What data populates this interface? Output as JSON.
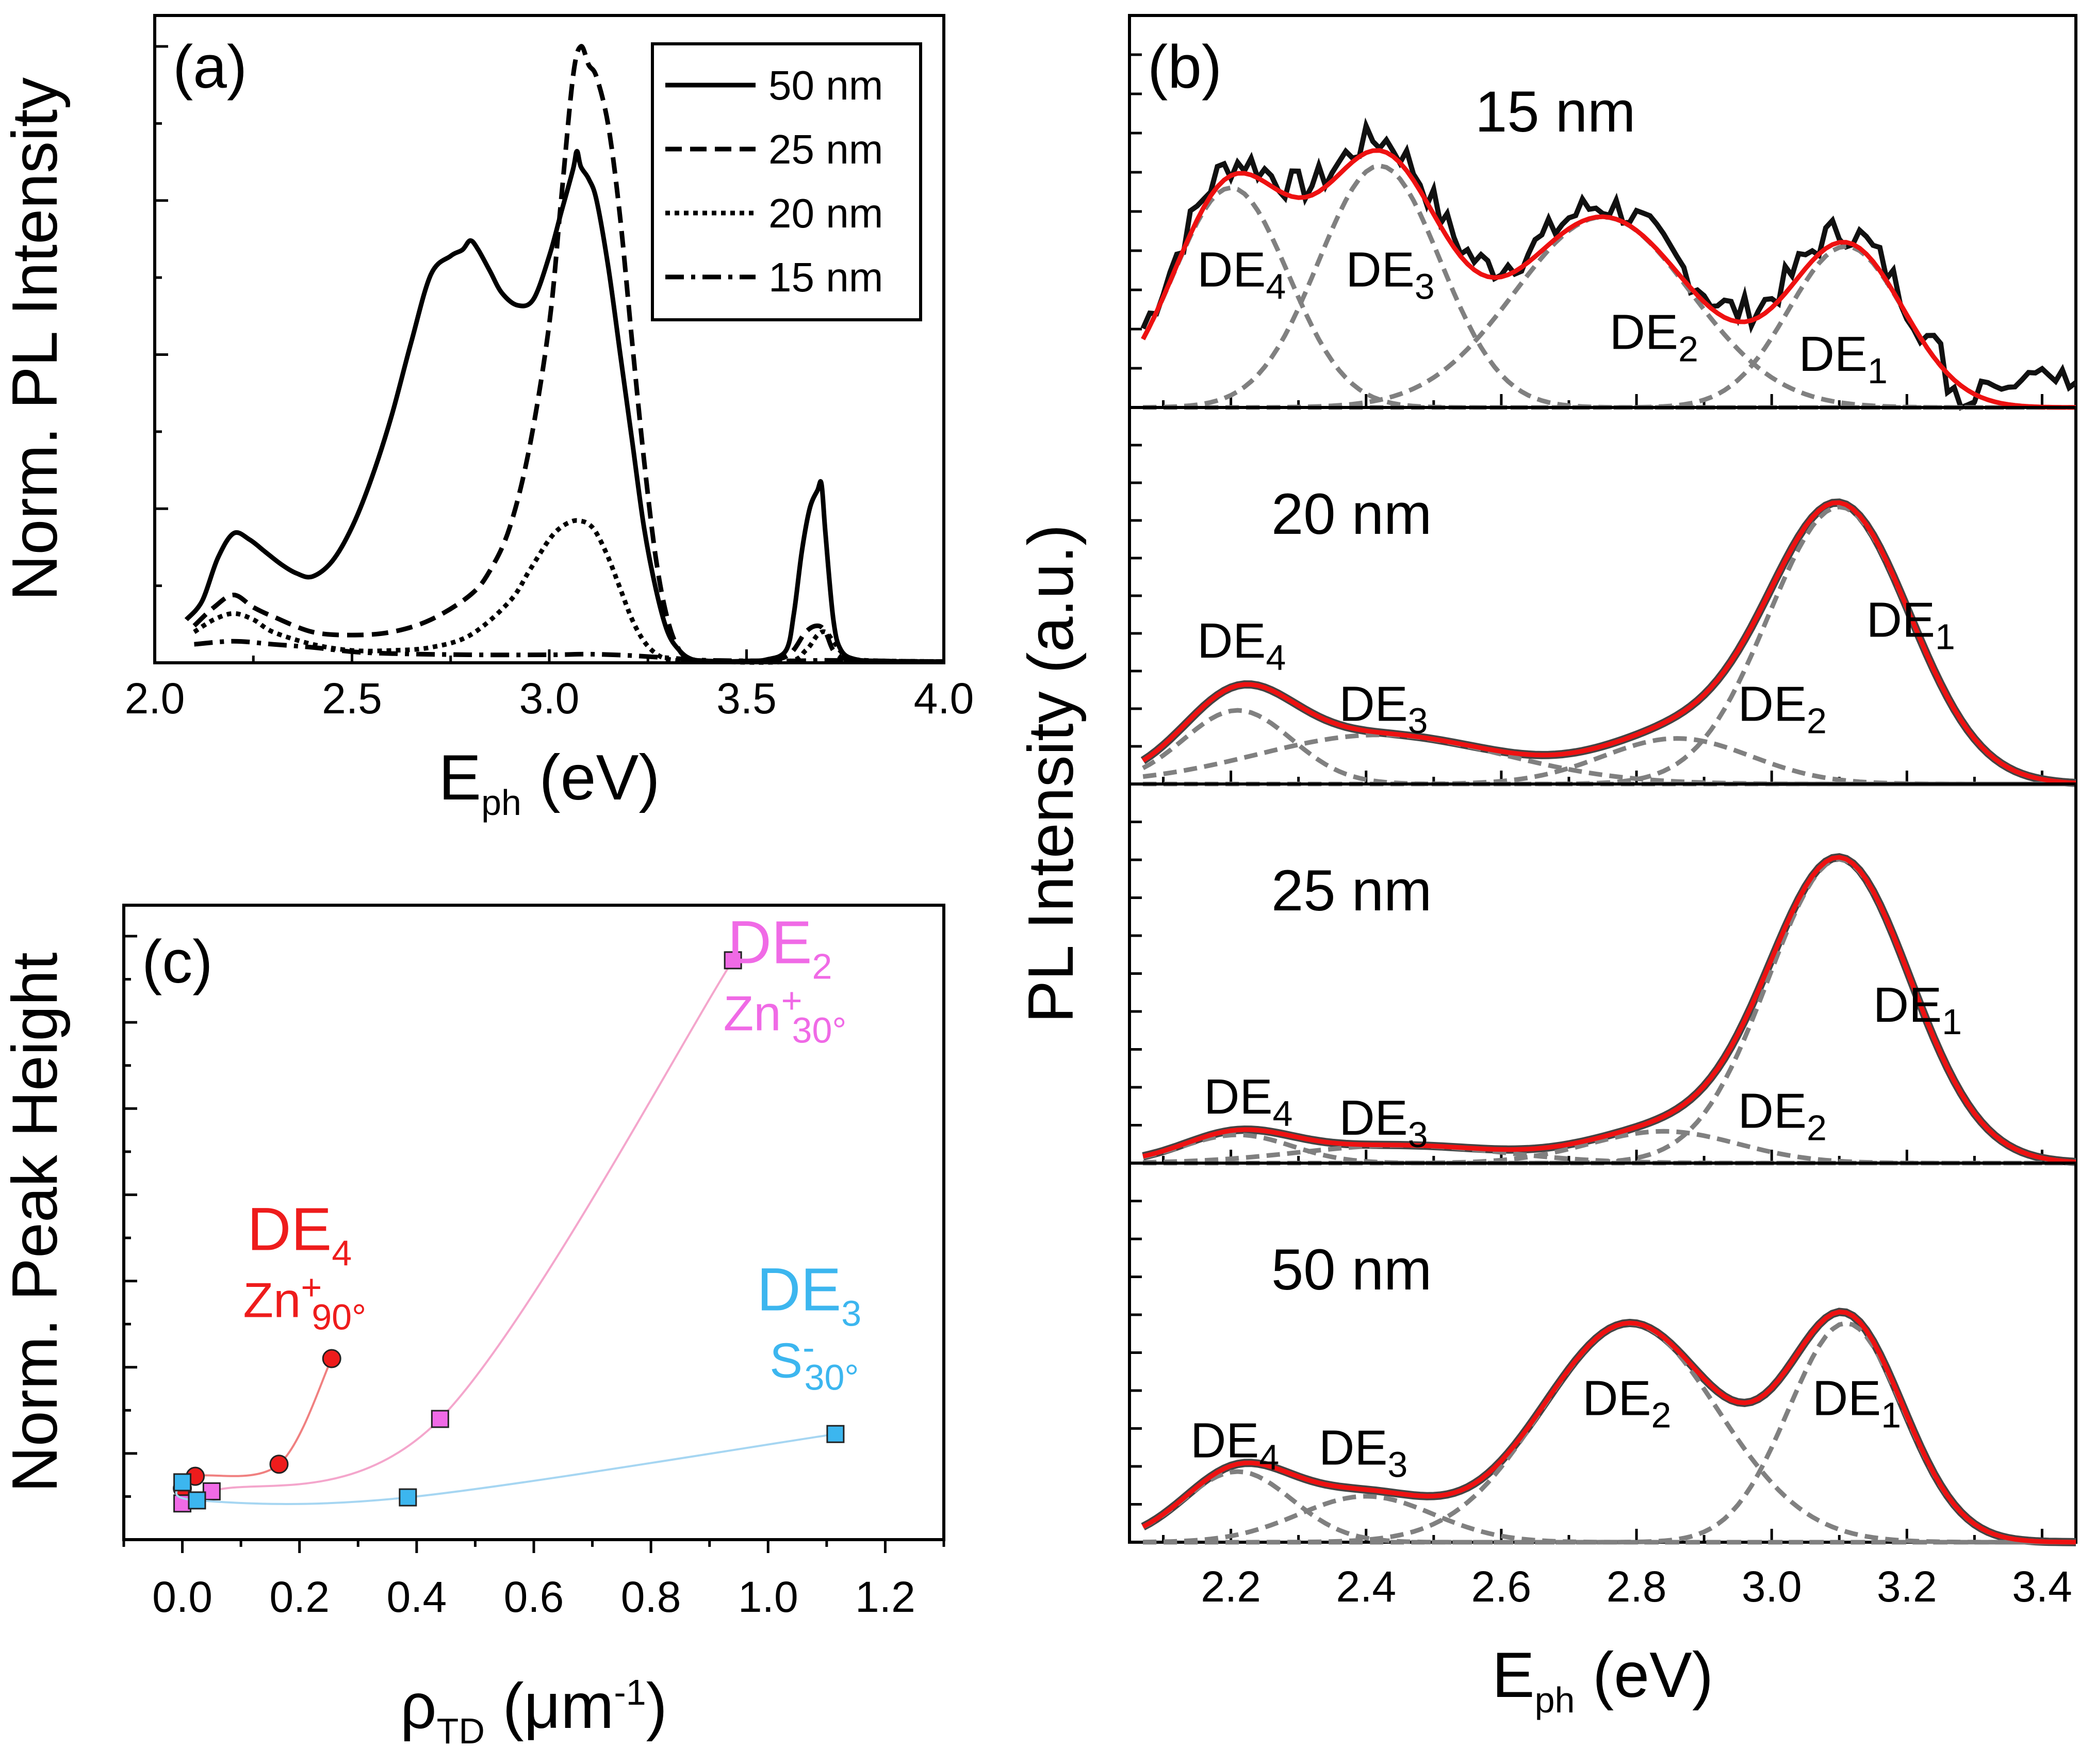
{
  "chart_data": [
    {
      "panel": "(a)",
      "type": "line",
      "xlabel": "E",
      "xlabel_sub": "ph",
      "xlabel_unit": "(eV)",
      "ylabel": "Norm. PL Intensity",
      "xlim": [
        2.0,
        4.0
      ],
      "ylim": [
        0,
        1.0
      ],
      "xticks": [
        "2.0",
        "2.5",
        "3.0",
        "3.5",
        "4.0"
      ],
      "legend_position": "top-right",
      "series": [
        {
          "name": "50 nm",
          "style": "solid",
          "x": [
            2.08,
            2.12,
            2.16,
            2.2,
            2.24,
            2.28,
            2.32,
            2.36,
            2.4,
            2.45,
            2.5,
            2.55,
            2.6,
            2.65,
            2.7,
            2.75,
            2.78,
            2.8,
            2.82,
            2.85,
            2.88,
            2.92,
            2.96,
            3.0,
            3.03,
            3.06,
            3.07,
            3.08,
            3.1,
            3.12,
            3.15,
            3.18,
            3.21,
            3.24,
            3.27,
            3.3,
            3.33,
            3.36,
            3.4,
            3.45,
            3.5,
            3.55,
            3.6,
            3.62,
            3.64,
            3.66,
            3.68,
            3.69,
            3.7,
            3.72,
            3.74,
            3.78,
            3.85,
            3.9,
            4.0
          ],
          "y": [
            0.07,
            0.1,
            0.17,
            0.21,
            0.2,
            0.18,
            0.16,
            0.145,
            0.14,
            0.165,
            0.22,
            0.3,
            0.4,
            0.52,
            0.63,
            0.66,
            0.67,
            0.685,
            0.67,
            0.635,
            0.6,
            0.58,
            0.59,
            0.66,
            0.73,
            0.8,
            0.83,
            0.805,
            0.785,
            0.75,
            0.64,
            0.5,
            0.36,
            0.22,
            0.12,
            0.05,
            0.02,
            0.006,
            0.003,
            0.002,
            0.003,
            0.005,
            0.02,
            0.08,
            0.18,
            0.25,
            0.28,
            0.29,
            0.21,
            0.07,
            0.02,
            0.005,
            0.003,
            0.002,
            0.002
          ]
        },
        {
          "name": "25 nm",
          "style": "dashed",
          "x": [
            2.1,
            2.15,
            2.2,
            2.25,
            2.3,
            2.4,
            2.5,
            2.6,
            2.7,
            2.8,
            2.85,
            2.9,
            2.95,
            3.0,
            3.03,
            3.06,
            3.08,
            3.1,
            3.12,
            3.15,
            3.18,
            3.21,
            3.24,
            3.27,
            3.3,
            3.33,
            3.36,
            3.4,
            3.5,
            3.6,
            3.65,
            3.68,
            3.7,
            3.72,
            3.75,
            3.8,
            3.9,
            4.0
          ],
          "y": [
            0.06,
            0.09,
            0.11,
            0.09,
            0.075,
            0.05,
            0.045,
            0.05,
            0.07,
            0.11,
            0.15,
            0.22,
            0.35,
            0.55,
            0.75,
            0.95,
            1.0,
            0.97,
            0.95,
            0.87,
            0.72,
            0.52,
            0.33,
            0.17,
            0.07,
            0.02,
            0.006,
            0.003,
            0.002,
            0.01,
            0.05,
            0.06,
            0.05,
            0.02,
            0.006,
            0.003,
            0.002,
            0.002
          ]
        },
        {
          "name": "20 nm",
          "style": "dotted",
          "x": [
            2.1,
            2.15,
            2.2,
            2.25,
            2.3,
            2.4,
            2.5,
            2.6,
            2.7,
            2.8,
            2.9,
            2.95,
            3.0,
            3.03,
            3.06,
            3.08,
            3.1,
            3.12,
            3.15,
            3.18,
            3.21,
            3.24,
            3.27,
            3.3,
            3.35,
            3.4,
            3.6,
            3.65,
            3.68,
            3.7,
            3.72,
            3.75,
            3.8,
            4.0
          ],
          "y": [
            0.05,
            0.07,
            0.08,
            0.07,
            0.05,
            0.03,
            0.02,
            0.02,
            0.025,
            0.045,
            0.1,
            0.15,
            0.2,
            0.22,
            0.23,
            0.23,
            0.225,
            0.21,
            0.17,
            0.12,
            0.07,
            0.035,
            0.015,
            0.006,
            0.003,
            0.002,
            0.002,
            0.02,
            0.045,
            0.05,
            0.035,
            0.012,
            0.004,
            0.002
          ]
        },
        {
          "name": "15 nm",
          "style": "dashdot",
          "x": [
            2.1,
            2.2,
            2.3,
            2.4,
            2.5,
            2.6,
            2.8,
            3.0,
            3.1,
            3.2,
            3.3,
            3.4,
            3.6,
            3.7,
            3.8,
            4.0
          ],
          "y": [
            0.03,
            0.035,
            0.03,
            0.025,
            0.018,
            0.015,
            0.013,
            0.013,
            0.014,
            0.012,
            0.008,
            0.004,
            0.003,
            0.004,
            0.003,
            0.002
          ]
        }
      ]
    },
    {
      "panel": "(b)",
      "type": "line",
      "xlabel": "E",
      "xlabel_sub": "ph",
      "xlabel_unit": "(eV)",
      "ylabel": "PL Intensity (a.u.)",
      "xlim": [
        2.05,
        3.45
      ],
      "xticks": [
        "2.2",
        "2.4",
        "2.6",
        "2.8",
        "3.0",
        "3.2",
        "3.4"
      ],
      "subplots": [
        {
          "label": "15 nm",
          "components": [
            {
              "name": "DE4",
              "center": 2.2,
              "width": 0.085,
              "amp": 0.6
            },
            {
              "name": "DE3",
              "center": 2.42,
              "width": 0.09,
              "amp": 0.66
            },
            {
              "name": "DE2",
              "center": 2.75,
              "width": 0.13,
              "amp": 0.52
            },
            {
              "name": "DE1",
              "center": 3.11,
              "width": 0.085,
              "amp": 0.44
            }
          ],
          "annotations": [
            {
              "text": "DE",
              "sub": "4",
              "x": 2.15,
              "y": 0.33
            },
            {
              "text": "DE",
              "sub": "3",
              "x": 2.37,
              "y": 0.33
            },
            {
              "text": "DE",
              "sub": "2",
              "x": 2.76,
              "y": 0.16
            },
            {
              "text": "DE",
              "sub": "1",
              "x": 3.04,
              "y": 0.1
            }
          ]
        },
        {
          "label": "20 nm",
          "components": [
            {
              "name": "DE4",
              "center": 2.21,
              "width": 0.08,
              "amp": 0.21
            },
            {
              "name": "DE3",
              "center": 2.42,
              "width": 0.18,
              "amp": 0.14
            },
            {
              "name": "DE2",
              "center": 2.86,
              "width": 0.11,
              "amp": 0.13
            },
            {
              "name": "DE1",
              "center": 3.1,
              "width": 0.105,
              "amp": 0.79
            }
          ],
          "annotations": [
            {
              "text": "DE",
              "sub": "4",
              "x": 2.15,
              "y": 0.36
            },
            {
              "text": "DE",
              "sub": "3",
              "x": 2.36,
              "y": 0.18
            },
            {
              "text": "DE",
              "sub": "2",
              "x": 2.95,
              "y": 0.18
            },
            {
              "text": "DE",
              "sub": "1",
              "x": 3.14,
              "y": 0.42
            }
          ]
        },
        {
          "label": "25 nm",
          "components": [
            {
              "name": "DE4",
              "center": 2.21,
              "width": 0.08,
              "amp": 0.08
            },
            {
              "name": "DE3",
              "center": 2.45,
              "width": 0.15,
              "amp": 0.05
            },
            {
              "name": "DE2",
              "center": 2.84,
              "width": 0.11,
              "amp": 0.09
            },
            {
              "name": "DE1",
              "center": 3.1,
              "width": 0.105,
              "amp": 0.86
            }
          ],
          "annotations": [
            {
              "text": "DE",
              "sub": "4",
              "x": 2.16,
              "y": 0.14
            },
            {
              "text": "DE",
              "sub": "3",
              "x": 2.36,
              "y": 0.08
            },
            {
              "text": "DE",
              "sub": "2",
              "x": 2.95,
              "y": 0.1
            },
            {
              "text": "DE",
              "sub": "1",
              "x": 3.15,
              "y": 0.4
            }
          ]
        },
        {
          "label": "50 nm",
          "components": [
            {
              "name": "DE4",
              "center": 2.21,
              "width": 0.08,
              "amp": 0.2
            },
            {
              "name": "DE3",
              "center": 2.4,
              "width": 0.1,
              "amp": 0.13
            },
            {
              "name": "DE2",
              "center": 2.79,
              "width": 0.13,
              "amp": 0.62
            },
            {
              "name": "DE1",
              "center": 3.11,
              "width": 0.085,
              "amp": 0.62
            }
          ],
          "annotations": [
            {
              "text": "DE",
              "sub": "4",
              "x": 2.14,
              "y": 0.24
            },
            {
              "text": "DE",
              "sub": "3",
              "x": 2.33,
              "y": 0.22
            },
            {
              "text": "DE",
              "sub": "2",
              "x": 2.72,
              "y": 0.36
            },
            {
              "text": "DE",
              "sub": "1",
              "x": 3.06,
              "y": 0.36
            }
          ]
        }
      ]
    },
    {
      "panel": "(c)",
      "type": "scatter",
      "xlabel": "ρ",
      "xlabel_sub": "TD",
      "xlabel_unit": "(μm",
      "xlabel_sup": "-1",
      "xlabel_close": ")",
      "ylabel": "Norm. Peak Height",
      "xlim": [
        -0.1,
        1.3
      ],
      "ylim": [
        0,
        1.0
      ],
      "xticks": [
        "0.0",
        "0.2",
        "0.4",
        "0.6",
        "0.8",
        "1.0",
        "1.2"
      ],
      "series": [
        {
          "name": "DE4",
          "defect": "Zn",
          "defect_sup": "+",
          "defect_sub": "90°",
          "color": "#ee1c1c",
          "line_color": "#f08080",
          "marker": "circle",
          "x": [
            0.0,
            0.022,
            0.165,
            0.255
          ],
          "y": [
            0.085,
            0.105,
            0.125,
            0.3
          ]
        },
        {
          "name": "DE2",
          "defect": "Zn",
          "defect_sup": "+",
          "defect_sub": "30°",
          "color": "#f06ae6",
          "line_color": "#f4a6cc",
          "marker": "square",
          "x": [
            0.0,
            0.05,
            0.44,
            0.94
          ],
          "y": [
            0.06,
            0.08,
            0.2,
            0.96
          ]
        },
        {
          "name": "DE3",
          "defect": "S",
          "defect_sup": "-",
          "defect_sub": "30°",
          "color": "#3cb6ef",
          "line_color": "#a6d6f2",
          "marker": "square",
          "x": [
            0.0,
            0.025,
            0.385,
            1.115
          ],
          "y": [
            0.095,
            0.065,
            0.07,
            0.175
          ]
        }
      ],
      "annotations": [
        {
          "series": "DE2",
          "x": 1.02,
          "y": 0.955
        },
        {
          "series": "DE4",
          "x": 0.2,
          "y": 0.48
        },
        {
          "series": "DE3",
          "x": 1.07,
          "y": 0.38
        }
      ]
    }
  ]
}
